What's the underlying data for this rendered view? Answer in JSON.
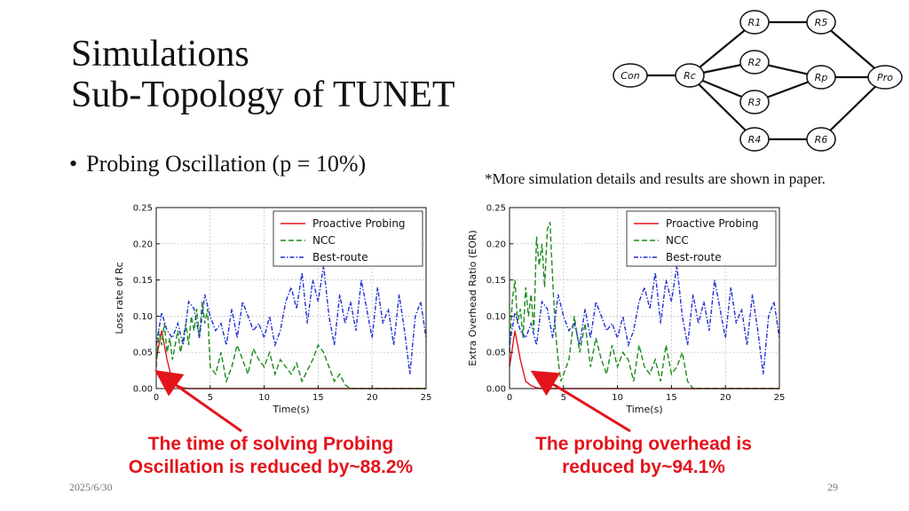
{
  "slide": {
    "title_line1": "Simulations",
    "title_line2": "Sub-Topology of TUNET",
    "bullet": "Probing Oscillation (p = 10%)",
    "note": "*More simulation details and results are shown in paper.",
    "caption_left_1": "The time of solving Probing",
    "caption_left_2": "Oscillation is reduced by~88.2%",
    "caption_right_1": "The probing overhead is",
    "caption_right_2": "reduced by~94.1%",
    "date": "2025/6/30",
    "page_number": "29",
    "accent_color": "#e3141b"
  },
  "topology": {
    "nodes": [
      {
        "id": "con",
        "label": "Con"
      },
      {
        "id": "rc",
        "label": "Rc"
      },
      {
        "id": "r1",
        "label": "R1"
      },
      {
        "id": "r2",
        "label": "R2"
      },
      {
        "id": "r3",
        "label": "R3"
      },
      {
        "id": "r4",
        "label": "R4"
      },
      {
        "id": "r5",
        "label": "R5"
      },
      {
        "id": "r6",
        "label": "R6"
      },
      {
        "id": "rp",
        "label": "Rp"
      },
      {
        "id": "pro",
        "label": "Pro"
      }
    ],
    "edges": [
      [
        "con",
        "rc"
      ],
      [
        "rc",
        "r1"
      ],
      [
        "rc",
        "r2"
      ],
      [
        "rc",
        "r3"
      ],
      [
        "rc",
        "r4"
      ],
      [
        "r1",
        "r5"
      ],
      [
        "r4",
        "r6"
      ],
      [
        "r2",
        "rp"
      ],
      [
        "r3",
        "rp"
      ],
      [
        "r5",
        "pro"
      ],
      [
        "r6",
        "pro"
      ],
      [
        "rp",
        "pro"
      ]
    ]
  },
  "chart_data": [
    {
      "type": "line",
      "xlabel": "Time(s)",
      "ylabel": "Loss rate of Rc",
      "xlim": [
        0,
        25
      ],
      "ylim": [
        0,
        0.25
      ],
      "xticks": [
        "0",
        "5",
        "10",
        "15",
        "20",
        "25"
      ],
      "yticks": [
        "0.00",
        "0.05",
        "0.10",
        "0.15",
        "0.20",
        "0.25"
      ],
      "legend_position": "top-right",
      "series": [
        {
          "name": "Proactive Probing",
          "color": "#e3141b",
          "style": "solid",
          "x": [
            0,
            0.5,
            1,
            1.5,
            2,
            2.5,
            3,
            25
          ],
          "y": [
            0.04,
            0.08,
            0.04,
            0.01,
            0.004,
            0.001,
            0,
            0
          ]
        },
        {
          "name": "NCC",
          "color": "#1a8a1a",
          "style": "dashed",
          "x": [
            0,
            0.25,
            0.5,
            0.75,
            1,
            1.25,
            1.5,
            1.75,
            2,
            2.25,
            2.5,
            2.75,
            3,
            3.25,
            3.5,
            3.75,
            4,
            4.25,
            4.5,
            4.75,
            5,
            5.5,
            6,
            6.5,
            7,
            7.5,
            8,
            8.5,
            9,
            9.5,
            10,
            10.5,
            11,
            11.5,
            12,
            12.5,
            13,
            13.5,
            14,
            14.5,
            15,
            15.5,
            16,
            16.5,
            17,
            17.5,
            18,
            25
          ],
          "y": [
            0.03,
            0.08,
            0.06,
            0.09,
            0.05,
            0.07,
            0.04,
            0.06,
            0.08,
            0.05,
            0.07,
            0.09,
            0.06,
            0.1,
            0.08,
            0.11,
            0.07,
            0.12,
            0.09,
            0.11,
            0.03,
            0.02,
            0.05,
            0.01,
            0.03,
            0.06,
            0.04,
            0.02,
            0.055,
            0.04,
            0.03,
            0.05,
            0.02,
            0.04,
            0.03,
            0.02,
            0.035,
            0.01,
            0.025,
            0.04,
            0.06,
            0.05,
            0.03,
            0.01,
            0.02,
            0.005,
            0,
            0
          ]
        },
        {
          "name": "Best-route",
          "color": "#1f2fd6",
          "style": "dashdot",
          "x": [
            0,
            0.5,
            1,
            1.5,
            2,
            2.5,
            3,
            3.5,
            4,
            4.5,
            5,
            5.5,
            6,
            6.5,
            7,
            7.5,
            8,
            8.5,
            9,
            9.5,
            10,
            10.5,
            11,
            11.5,
            12,
            12.5,
            13,
            13.5,
            14,
            14.5,
            15,
            15.5,
            16,
            16.5,
            17,
            17.5,
            18,
            18.5,
            19,
            19.5,
            20,
            20.5,
            21,
            21.5,
            22,
            22.5,
            23,
            23.5,
            24,
            24.5,
            25
          ],
          "y": [
            0.06,
            0.105,
            0.08,
            0.07,
            0.09,
            0.06,
            0.12,
            0.11,
            0.07,
            0.13,
            0.1,
            0.08,
            0.09,
            0.06,
            0.11,
            0.07,
            0.12,
            0.1,
            0.08,
            0.09,
            0.07,
            0.1,
            0.06,
            0.08,
            0.12,
            0.14,
            0.11,
            0.16,
            0.09,
            0.15,
            0.12,
            0.17,
            0.1,
            0.06,
            0.13,
            0.09,
            0.12,
            0.08,
            0.15,
            0.11,
            0.07,
            0.14,
            0.09,
            0.11,
            0.06,
            0.13,
            0.08,
            0.02,
            0.1,
            0.12,
            0.07
          ]
        }
      ]
    },
    {
      "type": "line",
      "xlabel": "Time(s)",
      "ylabel": "Extra Overhead Ratio (EOR)",
      "xlim": [
        0,
        25
      ],
      "ylim": [
        0,
        0.25
      ],
      "xticks": [
        "0",
        "5",
        "10",
        "15",
        "20",
        "25"
      ],
      "yticks": [
        "0.00",
        "0.05",
        "0.10",
        "0.15",
        "0.20",
        "0.25"
      ],
      "legend_position": "top-right",
      "series": [
        {
          "name": "Proactive Probing",
          "color": "#e3141b",
          "style": "solid",
          "x": [
            0,
            0.5,
            1,
            1.5,
            2,
            2.5,
            3,
            25
          ],
          "y": [
            0.03,
            0.08,
            0.04,
            0.01,
            0.004,
            0.001,
            0,
            0
          ]
        },
        {
          "name": "NCC",
          "color": "#1a8a1a",
          "style": "dashed",
          "x": [
            0,
            0.25,
            0.5,
            0.75,
            1,
            1.25,
            1.5,
            1.75,
            2,
            2.25,
            2.5,
            2.75,
            3,
            3.25,
            3.5,
            3.75,
            4,
            4.25,
            4.5,
            4.75,
            5,
            5.5,
            6,
            6.5,
            7,
            7.5,
            8,
            8.5,
            9,
            9.5,
            10,
            10.5,
            11,
            11.5,
            12,
            12.5,
            13,
            13.5,
            14,
            14.5,
            15,
            15.5,
            16,
            16.5,
            17,
            25
          ],
          "y": [
            0.05,
            0.12,
            0.15,
            0.09,
            0.11,
            0.07,
            0.14,
            0.1,
            0.13,
            0.08,
            0.21,
            0.17,
            0.2,
            0.14,
            0.22,
            0.23,
            0.15,
            0.08,
            0.04,
            0.01,
            0.02,
            0.04,
            0.1,
            0.05,
            0.09,
            0.03,
            0.07,
            0.04,
            0.02,
            0.06,
            0.03,
            0.05,
            0.04,
            0.01,
            0.06,
            0.03,
            0.02,
            0.04,
            0.01,
            0.06,
            0.02,
            0.03,
            0.05,
            0.01,
            0,
            0
          ]
        },
        {
          "name": "Best-route",
          "color": "#1f2fd6",
          "style": "dashdot",
          "x": [
            0,
            0.5,
            1,
            1.5,
            2,
            2.5,
            3,
            3.5,
            4,
            4.5,
            5,
            5.5,
            6,
            6.5,
            7,
            7.5,
            8,
            8.5,
            9,
            9.5,
            10,
            10.5,
            11,
            11.5,
            12,
            12.5,
            13,
            13.5,
            14,
            14.5,
            15,
            15.5,
            16,
            16.5,
            17,
            17.5,
            18,
            18.5,
            19,
            19.5,
            20,
            20.5,
            21,
            21.5,
            22,
            22.5,
            23,
            23.5,
            24,
            24.5,
            25
          ],
          "y": [
            0.06,
            0.105,
            0.08,
            0.07,
            0.09,
            0.06,
            0.12,
            0.11,
            0.07,
            0.13,
            0.1,
            0.08,
            0.09,
            0.06,
            0.11,
            0.07,
            0.12,
            0.1,
            0.08,
            0.09,
            0.07,
            0.1,
            0.06,
            0.08,
            0.12,
            0.14,
            0.11,
            0.16,
            0.09,
            0.15,
            0.12,
            0.17,
            0.1,
            0.06,
            0.13,
            0.09,
            0.12,
            0.08,
            0.15,
            0.11,
            0.07,
            0.14,
            0.09,
            0.11,
            0.06,
            0.13,
            0.08,
            0.02,
            0.1,
            0.12,
            0.07
          ]
        }
      ]
    }
  ]
}
